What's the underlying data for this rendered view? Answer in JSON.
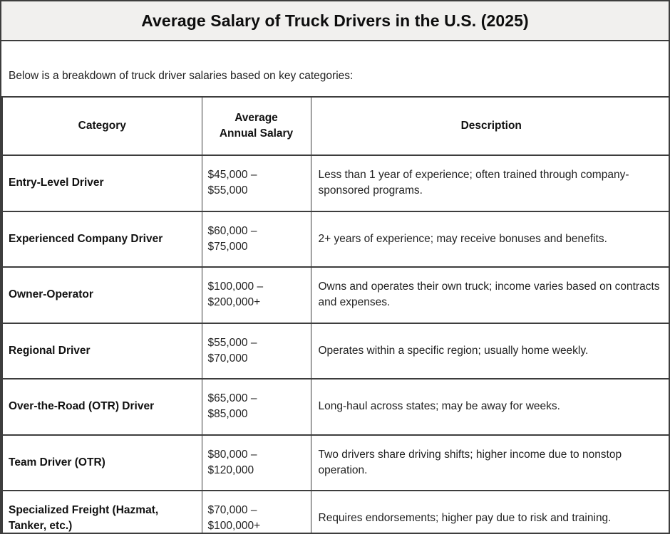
{
  "title": "Average Salary of Truck Drivers in the U.S. (2025)",
  "intro": "Below is a breakdown of truck driver salaries based on key categories:",
  "colors": {
    "title_band_bg": "#f1f0ee",
    "border": "#3d3d3d",
    "text": "#222222"
  },
  "table": {
    "columns": [
      "Category",
      "Average Annual Salary",
      "Description"
    ],
    "rows": [
      {
        "category": "Entry-Level Driver",
        "salary_lines": [
          "$45,000 –",
          "$55,000"
        ],
        "description": "Less than 1 year of experience; often trained through company-sponsored programs."
      },
      {
        "category": "Experienced Company Driver",
        "salary_lines": [
          "$60,000 –",
          "$75,000"
        ],
        "description": "2+ years of experience; may receive bonuses and benefits."
      },
      {
        "category": "Owner-Operator",
        "salary_lines": [
          "$100,000 –",
          "$200,000+"
        ],
        "description": "Owns and operates their own truck; income varies based on contracts and expenses."
      },
      {
        "category": "Regional Driver",
        "salary_lines": [
          "$55,000 –",
          "$70,000"
        ],
        "description": "Operates within a specific region; usually home weekly."
      },
      {
        "category": "Over-the-Road (OTR) Driver",
        "salary_lines": [
          "$65,000 –",
          "$85,000"
        ],
        "description": "Long-haul across states; may be away for weeks."
      },
      {
        "category": "Team Driver (OTR)",
        "salary_lines": [
          "$80,000 –",
          "$120,000"
        ],
        "description": "Two drivers share driving shifts; higher income due to nonstop operation."
      },
      {
        "category": "Specialized Freight (Hazmat, Tanker, etc.)",
        "salary_lines": [
          "$70,000 –",
          "$100,000+"
        ],
        "description": "Requires endorsements; higher pay due to risk and training."
      }
    ]
  }
}
